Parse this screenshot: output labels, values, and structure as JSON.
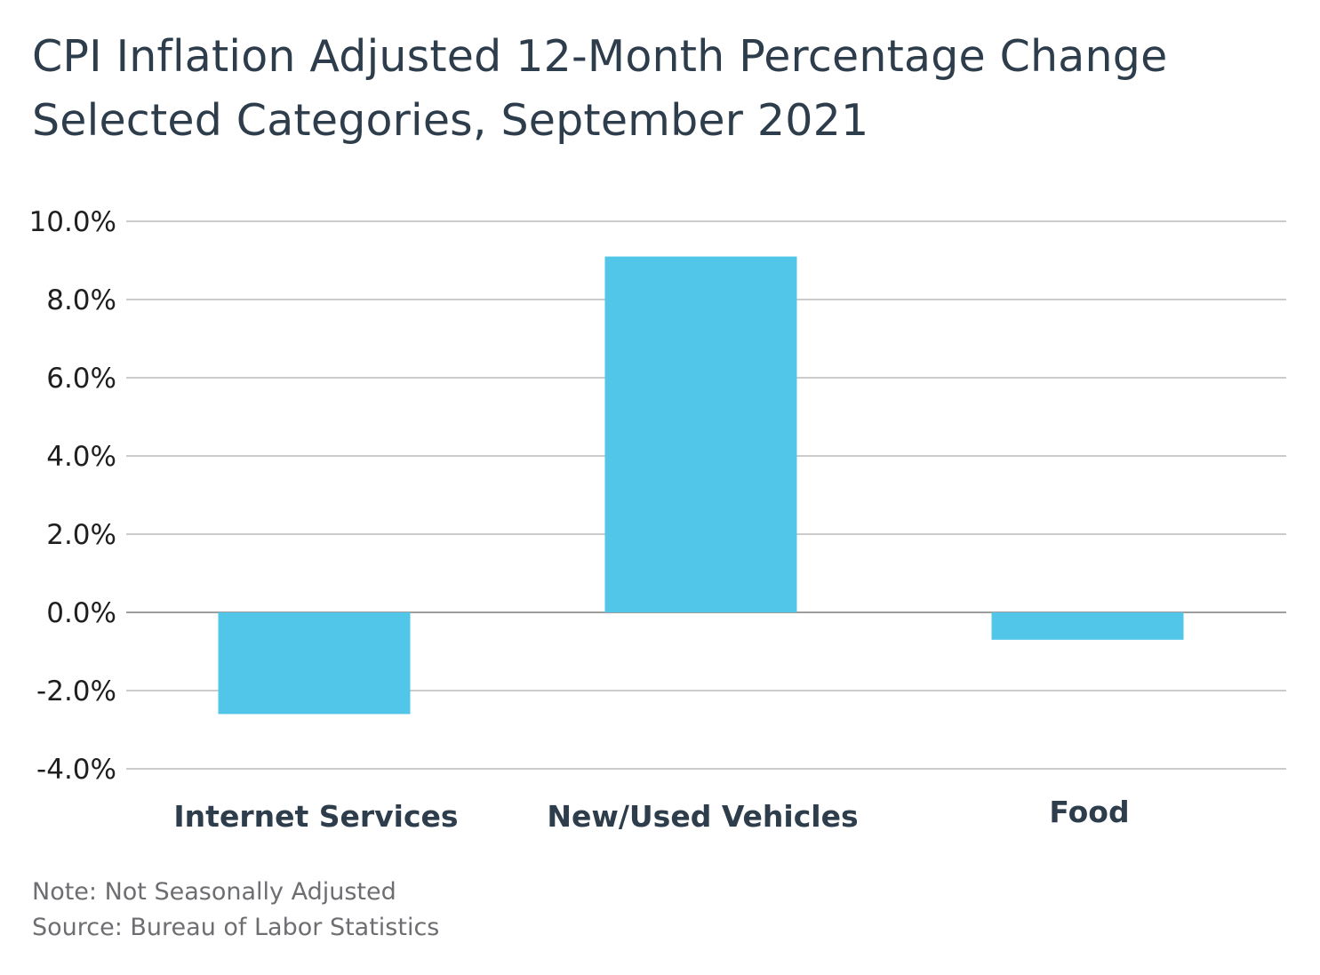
{
  "chart_data": {
    "type": "bar",
    "title": "CPI Inflation Adjusted 12-Month Percentage Change",
    "subtitle": "Selected Categories, September 2021",
    "categories": [
      "Internet Services",
      "New/Used Vehicles",
      "Food"
    ],
    "values": [
      -2.6,
      9.1,
      -0.7
    ],
    "ylim": [
      -4.0,
      10.0
    ],
    "yticks": [
      10.0,
      8.0,
      6.0,
      4.0,
      2.0,
      0.0,
      -2.0,
      -4.0
    ],
    "ytick_labels": [
      "10.0%",
      "8.0%",
      "6.0%",
      "4.0%",
      "2.0%",
      "0.0%",
      "-2.0%",
      "-4.0%"
    ],
    "xlabel": "",
    "ylabel": "",
    "grid": true,
    "bar_color": "#52c6e8",
    "grid_color": "#9a9a9a",
    "text_color": "#2e3d4c"
  },
  "footnotes": {
    "note": "Note: Not Seasonally Adjusted",
    "source": "Source: Bureau of Labor Statistics"
  }
}
